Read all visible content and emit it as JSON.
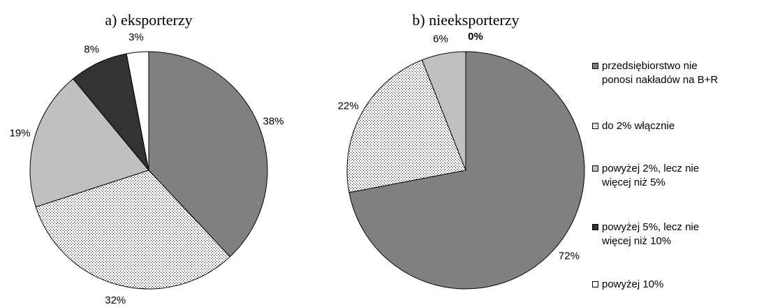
{
  "chart_data": [
    {
      "type": "pie",
      "title": "a) eksporterzy",
      "categories": [
        "przedsiębiorstwo nie\nponosi nakładów na B+R",
        "do 2% włącznie",
        "powyżej 2%, lecz nie\nwięcej niż 5%",
        "powyżej 5%, lecz nie\nwięcej niż 10%",
        "powyżej 10%"
      ],
      "values": [
        38,
        32,
        19,
        8,
        3
      ],
      "data_labels": [
        "38%",
        "32%",
        "19%",
        "8%",
        "3%"
      ]
    },
    {
      "type": "pie",
      "title": "b) nieeksporterzy",
      "categories": [
        "przedsiębiorstwo nie\nponosi nakładów na B+R",
        "do 2% włącznie",
        "powyżej 2%, lecz nie\nwięcej niż 5%",
        "powyżej 5%, lecz nie\nwięcej niż 10%",
        "powyżej 10%"
      ],
      "values": [
        72,
        22,
        6,
        0,
        0
      ],
      "data_labels": [
        "72%",
        "22%",
        "6%",
        "0%",
        ""
      ]
    }
  ],
  "legend": {
    "placement": "right",
    "items": [
      {
        "label": "przedsiębiorstwo nie\nponosi nakładów na B+R",
        "color": "#808080",
        "pattern": "solid"
      },
      {
        "label": "do 2% włącznie",
        "color": "#ffffff",
        "pattern": "dots"
      },
      {
        "label": "powyżej 2%, lecz nie\nwięcej niż 5%",
        "color": "#c0c0c0",
        "pattern": "solid"
      },
      {
        "label": "powyżej 5%, lecz nie\nwięcej niż 10%",
        "color": "#333333",
        "pattern": "solid"
      },
      {
        "label": "powyżej 10%",
        "color": "#ffffff",
        "pattern": "solid"
      }
    ]
  }
}
